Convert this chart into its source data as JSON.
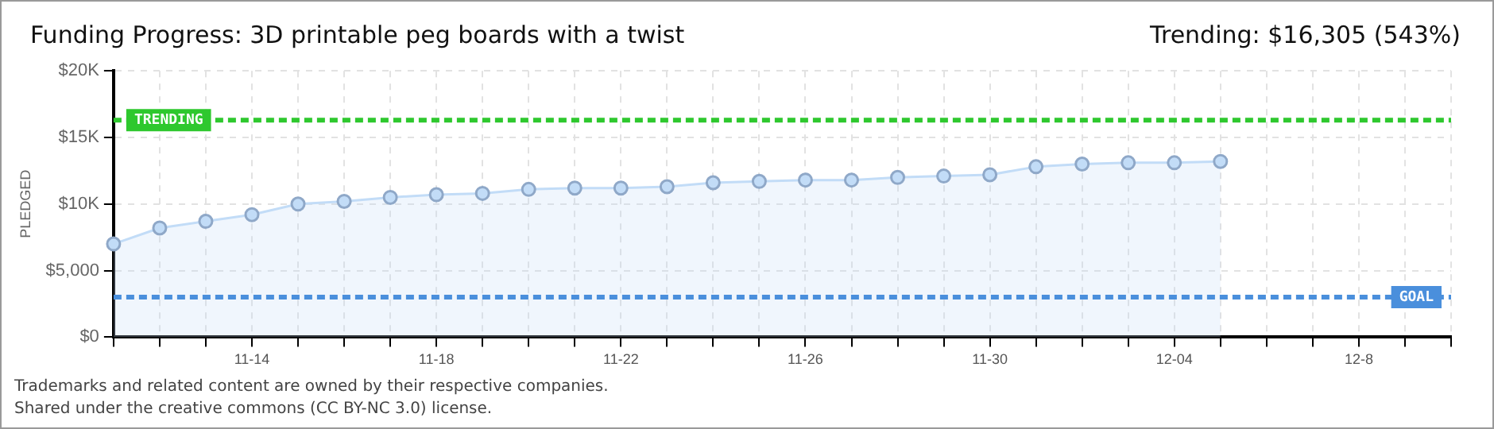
{
  "chart_data": {
    "type": "area",
    "title": "Funding Progress: 3D printable peg boards with a twist",
    "subtitle": "Trending: $16,305 (543%)",
    "ylabel": "PLEDGED",
    "categories": [
      null,
      null,
      null,
      "11-14",
      null,
      null,
      null,
      "11-18",
      null,
      null,
      null,
      "11-22",
      null,
      null,
      null,
      "11-26",
      null,
      null,
      null,
      "11-30",
      null,
      null,
      null,
      "12-04",
      null,
      null,
      null,
      "12-8",
      null,
      null
    ],
    "series": [
      {
        "color": "#c2dcf7",
        "values": [
          7000,
          8200,
          8700,
          9200,
          10000,
          10200,
          10500,
          10700,
          10800,
          11100,
          11200,
          11200,
          11300,
          11600,
          11700,
          11800,
          11800,
          12000,
          12100,
          12200,
          12800,
          13000,
          13100,
          13100,
          13200,
          null,
          null,
          null,
          null,
          null
        ]
      }
    ],
    "ylim": [
      0,
      20000
    ],
    "yticks": [
      {
        "value": 0,
        "label": "$0"
      },
      {
        "value": 5000,
        "label": "$5,000"
      },
      {
        "value": 10000,
        "label": "$10K"
      },
      {
        "value": 15000,
        "label": "$15K"
      },
      {
        "value": 20000,
        "label": "$20K"
      }
    ],
    "ref_lines": [
      {
        "axis": "y",
        "value": 16305,
        "label": "TRENDING",
        "color": "#2ec82e",
        "line_style": "dashed"
      },
      {
        "axis": "y",
        "value": 3000,
        "label": "GOAL",
        "color": "#4a8fdc",
        "line_style": "dashed"
      }
    ],
    "grid": true,
    "marker": "circle",
    "line_style": "solid",
    "annotations": [
      "Trademarks and related content are owned by their respective companies.",
      "Shared under the creative commons (CC BY-NC 3.0) license."
    ]
  }
}
